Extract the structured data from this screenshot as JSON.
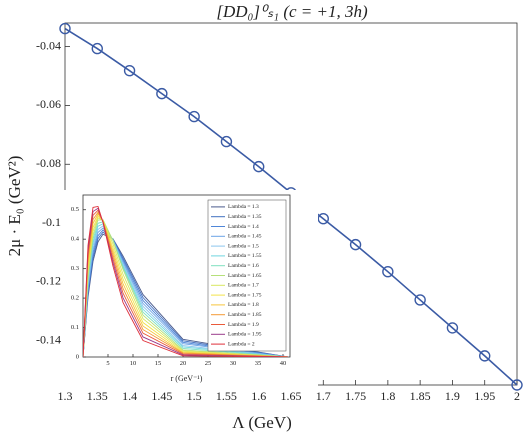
{
  "chart_data": [
    {
      "type": "line",
      "title": "[DD₀]⁰ₛ₁ (c = +1, 3h)",
      "x_label": "Λ (GeV)",
      "y_label": "2μ · E₀ (GeV²)",
      "x": [
        1.3,
        1.35,
        1.4,
        1.45,
        1.5,
        1.55,
        1.6,
        1.65,
        1.7,
        1.75,
        1.8,
        1.85,
        1.9,
        1.95,
        2
      ],
      "series": [
        {
          "color": "#3b5ba5",
          "values": [
            -0.0339,
            -0.0407,
            -0.0482,
            -0.056,
            -0.0638,
            -0.0723,
            -0.0808,
            -0.0897,
            -0.0985,
            -0.1073,
            -0.1165,
            -0.1261,
            -0.1356,
            -0.1451,
            -0.155
          ]
        }
      ],
      "xlim": [
        1.3,
        2
      ],
      "ylim": [
        -0.155,
        -0.032
      ],
      "xticks": [
        1.3,
        1.35,
        1.4,
        1.45,
        1.5,
        1.55,
        1.6,
        1.65,
        1.7,
        1.75,
        1.8,
        1.85,
        1.9,
        1.95,
        2
      ],
      "yticks": [
        -0.14,
        -0.12,
        -0.1,
        -0.08,
        -0.06,
        -0.04
      ],
      "grid": false,
      "markers": true
    },
    {
      "type": "line",
      "x_label": "r (GeV⁻¹)",
      "legend": "upper right",
      "markers": false,
      "grid": false,
      "x": [
        0,
        1,
        2,
        3,
        4,
        6,
        8,
        12,
        20,
        41
      ],
      "xlim": [
        0,
        41.4
      ],
      "ylim": [
        0,
        0.55
      ],
      "xticks": [
        5,
        10,
        15,
        20,
        25,
        30,
        35,
        40
      ],
      "yticks": [
        0,
        0.1,
        0.2,
        0.3,
        0.4,
        0.5
      ],
      "series": [
        {
          "name": "Lambda = 1.3",
          "color": "#4a5a8c",
          "values": [
            0,
            0.203,
            0.325,
            0.391,
            0.417,
            0.401,
            0.343,
            0.212,
            0.06,
            0
          ]
        },
        {
          "name": "Lambda = 1.35",
          "color": "#3f6fc0",
          "values": [
            0,
            0.213,
            0.337,
            0.402,
            0.424,
            0.4,
            0.336,
            0.202,
            0.055,
            0
          ]
        },
        {
          "name": "Lambda = 1.4",
          "color": "#4f86d8",
          "values": [
            0,
            0.223,
            0.35,
            0.412,
            0.431,
            0.399,
            0.33,
            0.192,
            0.05,
            0
          ]
        },
        {
          "name": "Lambda = 1.45",
          "color": "#6aa3e6",
          "values": [
            0,
            0.233,
            0.362,
            0.423,
            0.438,
            0.398,
            0.323,
            0.182,
            0.045,
            0
          ]
        },
        {
          "name": "Lambda = 1.5",
          "color": "#8cc6ee",
          "values": [
            0,
            0.243,
            0.375,
            0.433,
            0.445,
            0.397,
            0.317,
            0.172,
            0.039,
            0
          ]
        },
        {
          "name": "Lambda = 1.55",
          "color": "#6fd6e0",
          "values": [
            0,
            0.254,
            0.387,
            0.444,
            0.452,
            0.397,
            0.31,
            0.162,
            0.034,
            0
          ]
        },
        {
          "name": "Lambda = 1.6",
          "color": "#7fe0c0",
          "values": [
            0,
            0.264,
            0.4,
            0.454,
            0.459,
            0.396,
            0.304,
            0.152,
            0.029,
            0
          ]
        },
        {
          "name": "Lambda = 1.65",
          "color": "#b6e07a",
          "values": [
            0,
            0.274,
            0.412,
            0.465,
            0.466,
            0.395,
            0.297,
            0.142,
            0.024,
            0
          ]
        },
        {
          "name": "Lambda = 1.7",
          "color": "#d8e860",
          "values": [
            0,
            0.289,
            0.426,
            0.472,
            0.465,
            0.383,
            0.281,
            0.13,
            0.021,
            0
          ]
        },
        {
          "name": "Lambda = 1.75",
          "color": "#f2e24a",
          "values": [
            0,
            0.304,
            0.439,
            0.478,
            0.463,
            0.37,
            0.265,
            0.117,
            0.018,
            0
          ]
        },
        {
          "name": "Lambda = 1.8",
          "color": "#f6c43c",
          "values": [
            0,
            0.319,
            0.453,
            0.485,
            0.462,
            0.358,
            0.249,
            0.105,
            0.015,
            0
          ]
        },
        {
          "name": "Lambda = 1.85",
          "color": "#f49a36",
          "values": [
            0,
            0.334,
            0.467,
            0.491,
            0.461,
            0.346,
            0.233,
            0.093,
            0.013,
            0
          ]
        },
        {
          "name": "Lambda = 1.9",
          "color": "#ea5a3a",
          "values": [
            0,
            0.349,
            0.481,
            0.498,
            0.459,
            0.333,
            0.217,
            0.081,
            0.01,
            0
          ]
        },
        {
          "name": "Lambda = 1.95",
          "color": "#9a3a8a",
          "values": [
            0,
            0.364,
            0.494,
            0.505,
            0.458,
            0.321,
            0.201,
            0.068,
            0.007,
            0
          ]
        },
        {
          "name": "Lambda = 2",
          "color": "#e0303a",
          "values": [
            0,
            0.379,
            0.508,
            0.511,
            0.457,
            0.308,
            0.185,
            0.056,
            0.004,
            0
          ]
        }
      ]
    }
  ]
}
